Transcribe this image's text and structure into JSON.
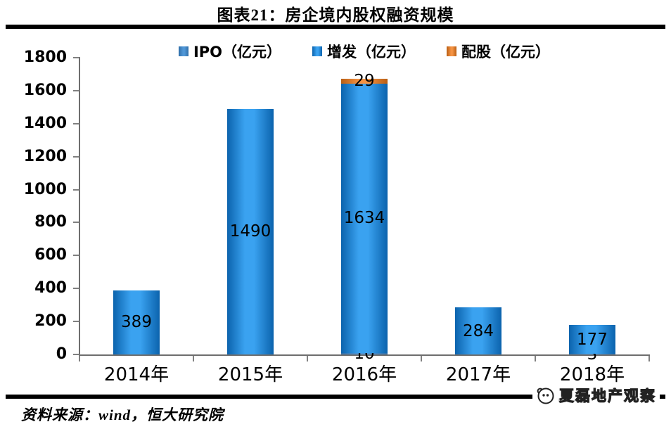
{
  "page": {
    "title": "图表21：房企境内股权融资规模",
    "source": "资料来源：wind，恒大研究院",
    "watermark": "夏磊地产观察"
  },
  "chart_data": {
    "type": "bar",
    "stacked": true,
    "title": "图表21：房企境内股权融资规模",
    "categories": [
      "2014年",
      "2015年",
      "2016年",
      "2017年",
      "2018年"
    ],
    "series": [
      {
        "name": "IPO（亿元）",
        "values": [
          0,
          0,
          10,
          0,
          3
        ],
        "color": "#4f96d6",
        "edge": "#2f6ea8"
      },
      {
        "name": "增发（亿元）",
        "values": [
          389,
          1490,
          1634,
          284,
          177
        ],
        "color": "#3aa2f0",
        "edge": "#0b63ad"
      },
      {
        "name": "配股（亿元）",
        "values": [
          0,
          0,
          29,
          0,
          0
        ],
        "color": "#f49242",
        "edge": "#b85e14"
      }
    ],
    "ylim": [
      0,
      1800
    ],
    "ytick_step": 200,
    "grid": false,
    "legend_position": "top",
    "bar_labels": true,
    "xlabel": "",
    "ylabel": ""
  }
}
